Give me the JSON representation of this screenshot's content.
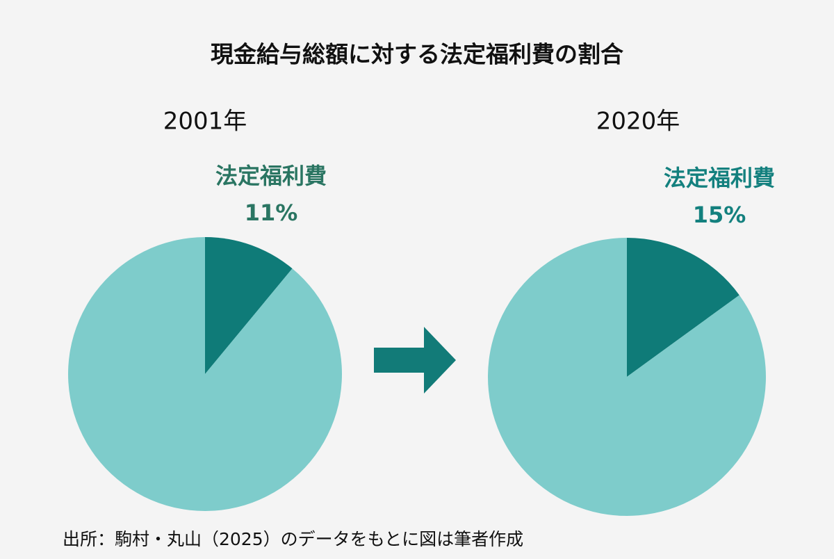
{
  "title": "現金給与総額に対する法定福利費の割合",
  "source": "出所：駒村・丸山（2025）のデータをもとに図は筆者作成",
  "chart_data": [
    {
      "type": "pie",
      "title": "2001年",
      "categories": [
        "法定福利費",
        null
      ],
      "values": [
        11,
        89
      ],
      "value_labels": [
        "11%",
        null
      ],
      "colors": [
        "#0f7b78",
        "#7ecccb"
      ],
      "label_color": "#2a7562"
    },
    {
      "type": "pie",
      "title": "2020年",
      "categories": [
        "法定福利費",
        null
      ],
      "values": [
        15,
        85
      ],
      "value_labels": [
        "15%",
        null
      ],
      "colors": [
        "#0f7b78",
        "#7ecccb"
      ],
      "label_color": "#13807e"
    }
  ]
}
